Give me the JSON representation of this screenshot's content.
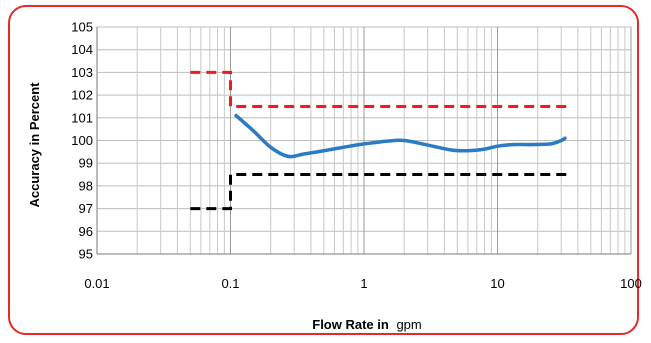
{
  "chart_data": {
    "type": "line",
    "title": "",
    "xlabel_bold": "Flow Rate in",
    "xlabel_unit": "gpm",
    "ylabel": "Accuracy in Percent",
    "x_scale": "log",
    "xlim": [
      0.01,
      100
    ],
    "ylim": [
      95,
      105
    ],
    "x_ticks": [
      0.01,
      0.1,
      1,
      10,
      100
    ],
    "x_tick_labels": [
      "0.01",
      "0.1",
      "1",
      "10",
      "100"
    ],
    "y_ticks": [
      95,
      96,
      97,
      98,
      99,
      100,
      101,
      102,
      103,
      104,
      105
    ],
    "grid": true,
    "legend": "none",
    "series": [
      {
        "style": "solid",
        "color": "#2a7bc4",
        "x": [
          0.11,
          0.15,
          0.2,
          0.27,
          0.35,
          0.5,
          0.7,
          1.0,
          1.5,
          2.0,
          3.0,
          4.5,
          6.0,
          8.0,
          10.0,
          13.0,
          18.0,
          25.0,
          30.0,
          32.0
        ],
        "y": [
          101.1,
          100.4,
          99.7,
          99.3,
          99.4,
          99.55,
          99.7,
          99.85,
          99.97,
          100.0,
          99.8,
          99.58,
          99.55,
          99.62,
          99.75,
          99.82,
          99.82,
          99.85,
          100.0,
          100.1
        ]
      },
      {
        "style": "dashed",
        "color": "#ee1c1c",
        "x": [
          0.05,
          0.1,
          0.1,
          35
        ],
        "y": [
          103,
          103,
          101.5,
          101.5
        ]
      },
      {
        "style": "dashed",
        "color": "#000000",
        "x": [
          0.05,
          0.1,
          0.1,
          35
        ],
        "y": [
          97,
          97,
          98.5,
          98.5
        ]
      }
    ]
  }
}
